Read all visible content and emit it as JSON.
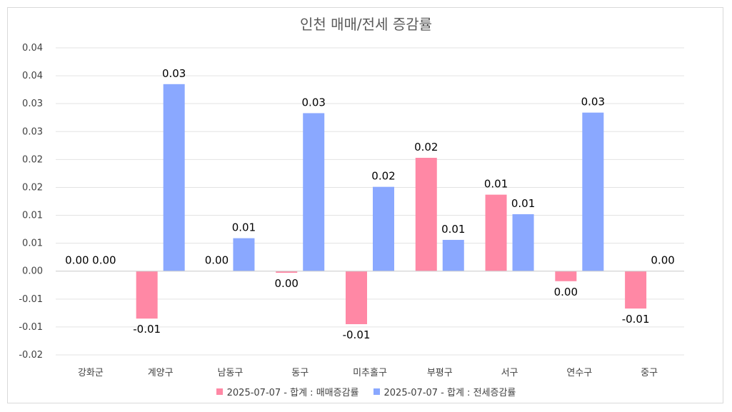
{
  "chart_data": {
    "type": "bar",
    "title": "인천 매매/전세 증감률",
    "xlabel": "",
    "ylabel": "",
    "categories": [
      "강화군",
      "계양구",
      "남동구",
      "동구",
      "미추홀구",
      "부평구",
      "서구",
      "연수구",
      "중구"
    ],
    "series": [
      {
        "name": "2025-07-07 - 합계 : 매매증감률",
        "color": "#ff88a5",
        "values": [
          0.0,
          -0.0085,
          0.0,
          -0.0003,
          -0.0095,
          0.0203,
          0.0137,
          -0.0018,
          -0.0067
        ],
        "labels": [
          "0.00",
          "-0.01",
          "0.00",
          "0.00",
          "-0.01",
          "0.02",
          "0.01",
          "0.00",
          "-0.01"
        ]
      },
      {
        "name": "2025-07-07 - 합계 : 전세증감률",
        "color": "#8aa8ff",
        "values": [
          0.0,
          0.0335,
          0.0059,
          0.0283,
          0.0151,
          0.0056,
          0.0102,
          0.0284,
          0.0
        ],
        "labels": [
          "0.00",
          "0.03",
          "0.01",
          "0.03",
          "0.02",
          "0.01",
          "0.01",
          "0.03",
          "0.00"
        ]
      }
    ],
    "ylim": [
      -0.015,
      0.04
    ],
    "yticks": [
      -0.015,
      -0.01,
      -0.005,
      0,
      0.005,
      0.01,
      0.015,
      0.02,
      0.025,
      0.03,
      0.035,
      0.04
    ],
    "ytick_labels": [
      "-0.02",
      "-0.01",
      "-0.01",
      "0.00",
      "0.01",
      "0.01",
      "0.02",
      "0.02",
      "0.03",
      "0.03",
      "0.04",
      "0.04"
    ],
    "grid": true,
    "legend_position": "bottom"
  }
}
